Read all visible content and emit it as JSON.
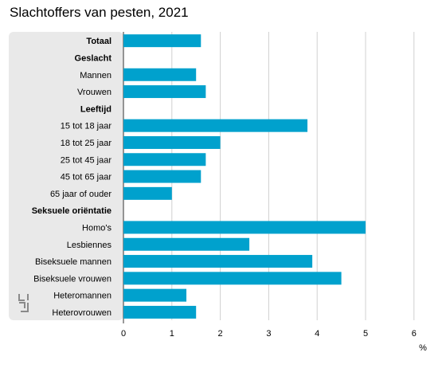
{
  "title": "Slachtoffers van pesten, 2021",
  "colors": {
    "bar": "#00a1cd",
    "panel": "#e9e9e9",
    "grid": "#d0d0d0",
    "axis": "#333333"
  },
  "logo": {
    "name": "cbs-logo"
  },
  "chart_data": {
    "type": "bar",
    "orientation": "horizontal",
    "title": "Slachtoffers van pesten, 2021",
    "xlabel": "%",
    "xlim": [
      0,
      6
    ],
    "xticks": [
      "0",
      "1",
      "2",
      "3",
      "4",
      "5",
      "6"
    ],
    "grid": true,
    "categories": [
      {
        "label": "Totaal",
        "value": 1.6,
        "bold": true
      },
      {
        "label": "Geslacht",
        "value": null,
        "bold": true
      },
      {
        "label": "Mannen",
        "value": 1.5,
        "bold": false
      },
      {
        "label": "Vrouwen",
        "value": 1.7,
        "bold": false
      },
      {
        "label": "Leeftijd",
        "value": null,
        "bold": true
      },
      {
        "label": "15 tot 18 jaar",
        "value": 3.8,
        "bold": false
      },
      {
        "label": "18 tot 25 jaar",
        "value": 2.0,
        "bold": false
      },
      {
        "label": "25 tot 45 jaar",
        "value": 1.7,
        "bold": false
      },
      {
        "label": "45 tot 65 jaar",
        "value": 1.6,
        "bold": false
      },
      {
        "label": "65 jaar of ouder",
        "value": 1.0,
        "bold": false
      },
      {
        "label": "Seksuele oriëntatie",
        "value": null,
        "bold": true
      },
      {
        "label": "Homo's",
        "value": 5.0,
        "bold": false
      },
      {
        "label": "Lesbiennes",
        "value": 2.6,
        "bold": false
      },
      {
        "label": "Biseksuele mannen",
        "value": 3.9,
        "bold": false
      },
      {
        "label": "Biseksuele vrouwen",
        "value": 4.5,
        "bold": false
      },
      {
        "label": "Heteromannen",
        "value": 1.3,
        "bold": false
      },
      {
        "label": "Heterovrouwen",
        "value": 1.5,
        "bold": false
      }
    ]
  }
}
